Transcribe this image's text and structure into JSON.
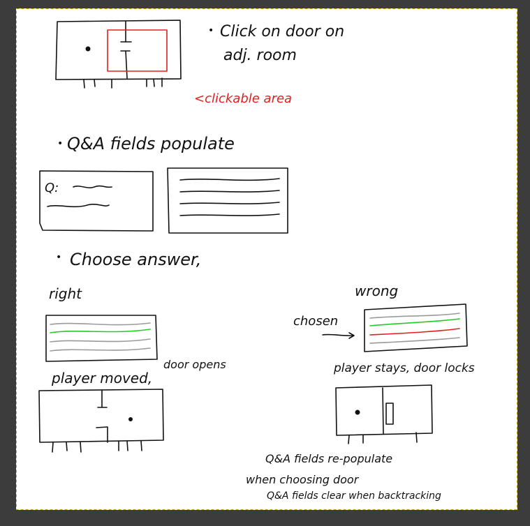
{
  "colors": {
    "frame": "#3c3c3c",
    "paper": "#ffffff",
    "dash": "#c8a400",
    "ink": "#111111",
    "red": "#e0201e",
    "green": "#22cc22",
    "gray": "#9a9a9a"
  },
  "notes": {
    "step1_line1": "Click on door on",
    "step1_line2": "adj. room",
    "clickable": "<clickable area",
    "step2": "Q&A fields populate",
    "q_label": "Q:",
    "step3": "Choose answer,",
    "right": "right",
    "wrong": "wrong",
    "chosen": "chosen",
    "player_moved": "player moved,",
    "door_opens": "door opens",
    "player_stays": "player stays, door locks",
    "repop_line1": "Q&A fields re-populate",
    "repop_line2": "when choosing door",
    "clear_line": "Q&A fields clear when backtracking"
  }
}
